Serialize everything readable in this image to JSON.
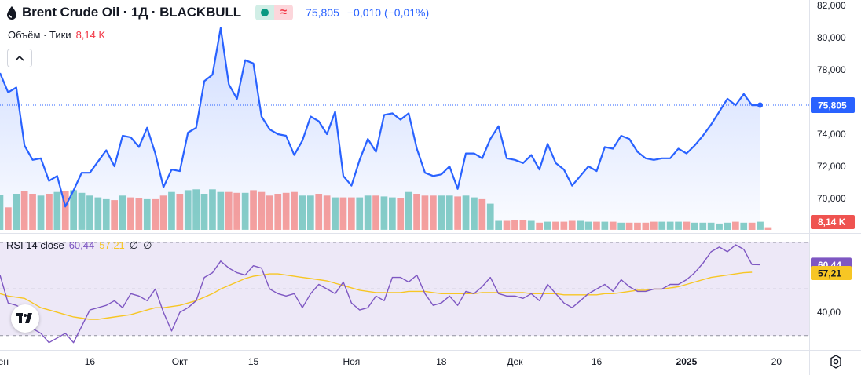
{
  "header": {
    "symbol_title": "Brent Crude Oil · 1Д · BLACKBULL",
    "price": "75,805",
    "change": "−0,010 (−0,01%)"
  },
  "volume_legend": {
    "label": "Объём · Тики",
    "value": "8,14 K"
  },
  "rsi_legend": {
    "label": "RSI 14 close",
    "rsi_value": "60,44",
    "ma_value": "57,21",
    "extra1": "∅",
    "extra2": "∅"
  },
  "colors": {
    "price_line": "#2962ff",
    "up": "#26a69a",
    "down": "#ef5350",
    "rsi": "#7e57c2",
    "rsi_ma": "#f7c624",
    "rsi_band": "#ede8f7"
  },
  "chart_data": [
    {
      "type": "line",
      "title": "Brent Crude Oil · 1Д · BLACKBULL",
      "ylim": [
        68.5,
        82.0
      ],
      "y_ticks": [
        70,
        72,
        74,
        76,
        78,
        80,
        82
      ],
      "y_tick_labels": [
        "70,000",
        "72,000",
        "74,000",
        "76,000",
        "78,000",
        "80,000",
        "82,000"
      ],
      "last_price": 75.805,
      "last_price_label": "75,805",
      "x_labels": [
        "Сен",
        "16",
        "Окт",
        "15",
        "Ноя",
        "18",
        "Дек",
        "16",
        "2025",
        "20"
      ],
      "x_label_index": [
        0,
        11,
        22,
        31,
        43,
        54,
        63,
        73,
        84,
        95
      ],
      "x_range": [
        0,
        99
      ],
      "series": [
        {
          "name": "Close",
          "values": [
            77.8,
            76.6,
            76.9,
            73.3,
            72.4,
            72.5,
            71.1,
            71.4,
            69.5,
            70.5,
            71.6,
            71.6,
            72.3,
            73.0,
            72.0,
            73.9,
            73.8,
            73.2,
            74.4,
            72.8,
            70.7,
            71.8,
            71.7,
            74.1,
            74.4,
            77.3,
            77.7,
            80.6,
            77.1,
            76.2,
            78.6,
            78.4,
            75.1,
            74.3,
            74.0,
            73.9,
            72.7,
            73.6,
            75.1,
            74.8,
            74.0,
            75.4,
            71.4,
            70.8,
            72.4,
            73.7,
            72.9,
            75.2,
            75.3,
            74.9,
            75.3,
            73.1,
            71.6,
            71.4,
            71.5,
            72.0,
            70.6,
            72.8,
            72.8,
            72.5,
            73.7,
            74.5,
            72.5,
            72.4,
            72.2,
            72.7,
            71.8,
            73.4,
            72.2,
            71.8,
            70.8,
            71.4,
            72.0,
            71.7,
            73.2,
            73.1,
            73.9,
            73.7,
            72.9,
            72.5,
            72.4,
            72.5,
            72.5,
            73.1,
            72.8,
            73.3,
            73.9,
            74.6,
            75.4,
            76.2,
            75.8,
            76.5,
            75.8,
            75.805
          ]
        },
        {
          "name": "Объём · Тики",
          "bar_values_k": [
            39,
            25,
            40,
            43,
            40,
            38,
            40,
            42,
            43,
            44,
            41,
            38,
            36,
            34,
            33,
            38,
            36,
            35,
            34,
            34,
            38,
            42,
            40,
            44,
            45,
            40,
            45,
            42,
            42,
            41,
            41,
            44,
            42,
            38,
            40,
            41,
            42,
            38,
            38,
            40,
            38,
            36,
            36,
            36,
            36,
            38,
            38,
            37,
            36,
            35,
            42,
            40,
            38,
            38,
            38,
            38,
            37,
            38,
            36,
            34,
            29,
            10,
            10,
            11,
            11,
            10,
            8,
            9,
            9,
            9,
            10,
            10,
            9,
            9,
            9,
            9,
            8,
            8,
            8,
            8,
            9,
            9,
            9,
            9,
            9,
            8,
            8,
            8,
            7,
            8,
            9,
            8,
            8,
            9,
            3
          ]
        }
      ]
    },
    {
      "type": "line",
      "title": "RSI 14 close",
      "ylim": [
        25,
        75
      ],
      "y_ticks": [
        30,
        40,
        50,
        60,
        70
      ],
      "y_tick_labels": [
        "40,00"
      ],
      "y_tick_label_values": [
        40
      ],
      "band": [
        30,
        70
      ],
      "middle": 50,
      "x_range": [
        0,
        99
      ],
      "series": [
        {
          "name": "RSI",
          "values": [
            56.0,
            44.0,
            43.0,
            41.0,
            33.0,
            31.0,
            27.0,
            29.0,
            31.0,
            27.0,
            34.0,
            41.0,
            42.0,
            43.0,
            45.0,
            42.0,
            48.0,
            47.0,
            45.0,
            50.0,
            40.0,
            32.0,
            40.0,
            42.0,
            45.0,
            55.0,
            57.0,
            62.0,
            59.0,
            57.0,
            56.0,
            60.0,
            59.0,
            50.0,
            48.0,
            47.0,
            48.0,
            42.0,
            48.0,
            52.0,
            50.0,
            48.0,
            53.0,
            44.0,
            41.0,
            42.0,
            47.0,
            45.0,
            55.0,
            55.0,
            53.0,
            56.0,
            48.0,
            43.0,
            44.0,
            47.0,
            43.0,
            49.0,
            48.0,
            51.0,
            55.0,
            48.0,
            47.0,
            47.0,
            46.0,
            48.0,
            45.0,
            52.0,
            48.0,
            44.0,
            42.0,
            45.0,
            48.0,
            50.0,
            52.0,
            49.0,
            54.0,
            51.0,
            49.0,
            49.0,
            50.0,
            50.0,
            52.0,
            52.0,
            54.0,
            57.0,
            61.0,
            66.0,
            68.0,
            66.0,
            69.0,
            67.0,
            60.5,
            60.44
          ]
        },
        {
          "name": "RSI-based MA",
          "values": [
            48.0,
            47.0,
            46.5,
            46.0,
            44.0,
            42.0,
            41.0,
            40.0,
            39.0,
            38.0,
            37.5,
            37.0,
            37.0,
            37.5,
            38.0,
            38.5,
            39.0,
            40.0,
            41.0,
            42.0,
            42.0,
            42.5,
            43.0,
            44.0,
            45.0,
            46.5,
            48.0,
            50.0,
            51.5,
            53.0,
            54.5,
            55.5,
            56.0,
            56.5,
            56.5,
            56.0,
            55.5,
            55.0,
            54.5,
            54.0,
            53.5,
            52.5,
            51.5,
            50.5,
            49.5,
            49.0,
            48.5,
            48.5,
            48.5,
            48.5,
            49.0,
            49.0,
            49.0,
            48.5,
            48.0,
            48.0,
            48.0,
            48.0,
            48.0,
            48.5,
            48.5,
            48.5,
            48.5,
            48.5,
            48.5,
            48.0,
            48.0,
            48.0,
            48.0,
            47.5,
            47.5,
            47.5,
            47.5,
            47.5,
            48.0,
            48.0,
            48.5,
            49.0,
            49.5,
            49.5,
            50.0,
            50.0,
            50.5,
            51.0,
            52.0,
            53.0,
            54.0,
            55.0,
            55.5,
            56.0,
            56.5,
            57.0,
            57.21
          ]
        }
      ],
      "last_labels": [
        "60,44",
        "57,21"
      ]
    }
  ]
}
